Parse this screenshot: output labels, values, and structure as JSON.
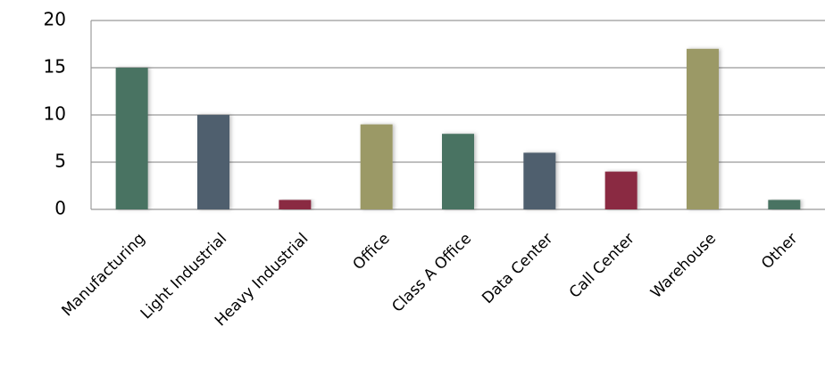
{
  "chart_data": {
    "type": "bar",
    "categories": [
      "Manufacturing",
      "Light Industrial",
      "Heavy Industrial",
      "Office",
      "Class A Office",
      "Data Center",
      "Call Center",
      "Warehouse",
      "Other"
    ],
    "values": [
      15,
      10,
      1,
      9,
      8,
      6,
      4,
      17,
      1
    ],
    "colors": [
      "#4a7362",
      "#4f5e6e",
      "#8a2a42",
      "#9b9966",
      "#4a7362",
      "#4f5e6e",
      "#8a2a42",
      "#9b9966",
      "#4a7362"
    ],
    "ylim": [
      0,
      20
    ],
    "yticks": [
      0,
      5,
      10,
      15,
      20
    ],
    "grid": true
  }
}
